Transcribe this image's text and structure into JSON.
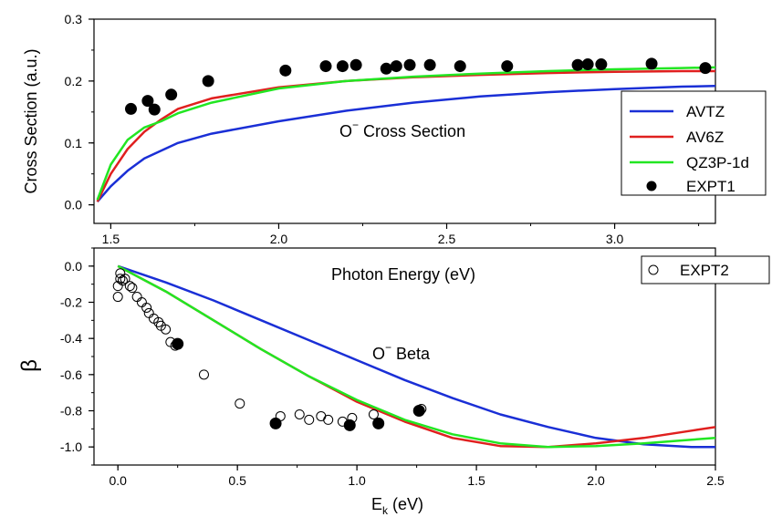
{
  "chart_data": [
    {
      "type": "line",
      "title": "O⁻ Cross Section",
      "xlabel": "Photon Energy (eV)",
      "ylabel": "Cross Section (a.u.)",
      "xlim": [
        1.45,
        3.3
      ],
      "ylim": [
        -0.03,
        0.3
      ],
      "xticks": [
        1.5,
        2.0,
        2.5,
        3.0
      ],
      "xtick_labels": [
        "1.5",
        "2.0",
        "2.5",
        "3.0"
      ],
      "yticks": [
        0.0,
        0.1,
        0.2,
        0.3
      ],
      "ytick_labels": [
        "0.0",
        "0.1",
        "0.2",
        "0.3"
      ],
      "legend_position": "right",
      "series": [
        {
          "name": "AVTZ",
          "color": "#1a2fd6",
          "kind": "line",
          "x": [
            1.46,
            1.5,
            1.55,
            1.6,
            1.7,
            1.8,
            2.0,
            2.2,
            2.4,
            2.6,
            2.8,
            3.0,
            3.2,
            3.3
          ],
          "y": [
            0.005,
            0.03,
            0.055,
            0.075,
            0.1,
            0.115,
            0.135,
            0.152,
            0.165,
            0.175,
            0.182,
            0.187,
            0.191,
            0.192
          ]
        },
        {
          "name": "AV6Z",
          "color": "#e0201f",
          "kind": "line",
          "x": [
            1.46,
            1.5,
            1.55,
            1.6,
            1.65,
            1.7,
            1.8,
            2.0,
            2.2,
            2.4,
            2.6,
            2.8,
            3.0,
            3.2,
            3.3
          ],
          "y": [
            0.005,
            0.05,
            0.09,
            0.118,
            0.138,
            0.155,
            0.172,
            0.19,
            0.2,
            0.206,
            0.21,
            0.213,
            0.215,
            0.216,
            0.216
          ]
        },
        {
          "name": "QZ3P-1d",
          "color": "#22e622",
          "kind": "line",
          "x": [
            1.46,
            1.5,
            1.55,
            1.6,
            1.65,
            1.7,
            1.8,
            2.0,
            2.2,
            2.4,
            2.6,
            2.8,
            3.0,
            3.2,
            3.3
          ],
          "y": [
            0.008,
            0.065,
            0.105,
            0.125,
            0.135,
            0.148,
            0.165,
            0.188,
            0.2,
            0.207,
            0.212,
            0.216,
            0.219,
            0.221,
            0.222
          ]
        },
        {
          "name": "EXPT1",
          "color": "#000000",
          "kind": "filled_circle",
          "x": [
            1.56,
            1.61,
            1.63,
            1.68,
            1.79,
            2.02,
            2.14,
            2.19,
            2.23,
            2.32,
            2.35,
            2.39,
            2.45,
            2.54,
            2.68,
            2.89,
            2.92,
            2.96,
            3.11,
            3.27
          ],
          "y": [
            0.155,
            0.168,
            0.154,
            0.178,
            0.2,
            0.217,
            0.224,
            0.224,
            0.226,
            0.22,
            0.224,
            0.226,
            0.226,
            0.224,
            0.224,
            0.226,
            0.227,
            0.227,
            0.228,
            0.221
          ]
        }
      ]
    },
    {
      "type": "line",
      "title": "O⁻ Beta",
      "xlabel": "Eₖ (eV)",
      "ylabel": "β",
      "xlim": [
        -0.1,
        2.5
      ],
      "ylim": [
        -1.1,
        0.1
      ],
      "xticks": [
        0.0,
        0.5,
        1.0,
        1.5,
        2.0,
        2.5
      ],
      "xtick_labels": [
        "0.0",
        "0.5",
        "1.0",
        "1.5",
        "2.0",
        "2.5"
      ],
      "yticks": [
        0.0,
        -0.2,
        -0.4,
        -0.6,
        -0.8,
        -1.0
      ],
      "ytick_labels": [
        "0.0",
        "-0.2",
        "-0.4",
        "-0.6",
        "-0.8",
        "-1.0"
      ],
      "legend_position": "top-right",
      "series": [
        {
          "name": "AVTZ",
          "color": "#1a2fd6",
          "kind": "line",
          "x": [
            0.0,
            0.2,
            0.4,
            0.6,
            0.8,
            1.0,
            1.2,
            1.4,
            1.6,
            1.8,
            2.0,
            2.2,
            2.4,
            2.5
          ],
          "y": [
            0.0,
            -0.09,
            -0.19,
            -0.3,
            -0.41,
            -0.52,
            -0.63,
            -0.73,
            -0.82,
            -0.89,
            -0.95,
            -0.985,
            -1.0,
            -1.0
          ]
        },
        {
          "name": "AV6Z",
          "color": "#e0201f",
          "kind": "line",
          "x": [
            0.0,
            0.2,
            0.4,
            0.6,
            0.8,
            1.0,
            1.2,
            1.4,
            1.6,
            1.8,
            2.0,
            2.2,
            2.4,
            2.5
          ],
          "y": [
            0.0,
            -0.14,
            -0.3,
            -0.46,
            -0.61,
            -0.75,
            -0.86,
            -0.95,
            -0.995,
            -1.0,
            -0.98,
            -0.95,
            -0.91,
            -0.89
          ]
        },
        {
          "name": "QZ3P-1d",
          "color": "#22e622",
          "kind": "line",
          "x": [
            0.0,
            0.2,
            0.4,
            0.6,
            0.8,
            1.0,
            1.2,
            1.4,
            1.6,
            1.8,
            2.0,
            2.2,
            2.4,
            2.5
          ],
          "y": [
            0.0,
            -0.14,
            -0.3,
            -0.46,
            -0.61,
            -0.74,
            -0.85,
            -0.93,
            -0.98,
            -1.0,
            -0.995,
            -0.98,
            -0.96,
            -0.95
          ]
        },
        {
          "name": "EXPT1",
          "color": "#000000",
          "kind": "filled_circle",
          "x": [
            0.25,
            0.66,
            0.97,
            1.09,
            1.26
          ],
          "y": [
            -0.43,
            -0.87,
            -0.88,
            -0.87,
            -0.8
          ]
        },
        {
          "name": "EXPT2",
          "color": "#000000",
          "kind": "open_circle",
          "x": [
            0.0,
            0.0,
            0.01,
            0.01,
            0.02,
            0.03,
            0.05,
            0.06,
            0.08,
            0.1,
            0.12,
            0.13,
            0.15,
            0.17,
            0.18,
            0.2,
            0.22,
            0.24,
            0.36,
            0.51,
            0.68,
            0.76,
            0.8,
            0.85,
            0.88,
            0.94,
            0.98,
            1.07,
            1.27
          ],
          "y": [
            -0.17,
            -0.11,
            -0.07,
            -0.04,
            -0.08,
            -0.07,
            -0.11,
            -0.12,
            -0.17,
            -0.2,
            -0.23,
            -0.26,
            -0.29,
            -0.31,
            -0.33,
            -0.35,
            -0.42,
            -0.44,
            -0.6,
            -0.76,
            -0.83,
            -0.82,
            -0.85,
            -0.83,
            -0.85,
            -0.86,
            -0.84,
            -0.82,
            -0.79
          ]
        }
      ]
    }
  ],
  "labels": {
    "top_ylabel": "Cross Section (a.u.)",
    "top_xlabel": "Photon Energy (eV)",
    "top_title_main": "O",
    "top_title_sup": "−",
    "top_title_rest": "  Cross Section",
    "bottom_ylabel": "β",
    "bottom_xlabel_main": "E",
    "bottom_xlabel_sub": "k",
    "bottom_xlabel_rest": " (eV)",
    "bottom_title_main": "O",
    "bottom_title_sup": "−",
    "bottom_title_rest": "  Beta",
    "legend_top": [
      "AVTZ",
      "AV6Z",
      "QZ3P-1d",
      "EXPT1"
    ],
    "legend_bottom": [
      "EXPT2"
    ]
  }
}
